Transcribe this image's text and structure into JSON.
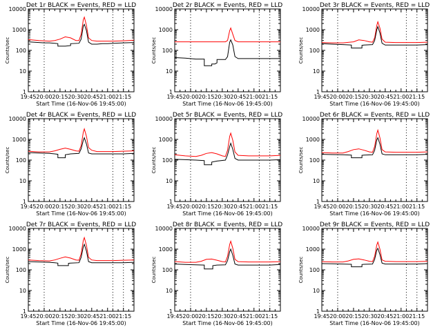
{
  "colors": {
    "events": "#000000",
    "lld": "#ff0000",
    "axis": "#000000",
    "background": "#ffffff"
  },
  "shared": {
    "ylabel": "Counts/sec",
    "xlabel": "Start Time (16-Nov-06 19:45:00)",
    "x_tick_labels": [
      "19:45",
      "20:00",
      "20:15",
      "20:30",
      "20:45",
      "21:00",
      "21:15"
    ],
    "y_tick_labels": [
      "1",
      "10",
      "100",
      "1000",
      "10000"
    ],
    "x_range_minutes": [
      0,
      100
    ],
    "y_range": [
      1,
      10000
    ],
    "y_scale": "log",
    "dotted_verticals_minutes": [
      15,
      80,
      90
    ]
  },
  "chart_data": [
    {
      "type": "line",
      "title": "Det 1r BLACK = Events, RED = LLD",
      "series": [
        {
          "name": "Events",
          "x": [
            0,
            5,
            10,
            15,
            20,
            25,
            28,
            28,
            35,
            40,
            40,
            48,
            50,
            52,
            53,
            55,
            57,
            60,
            65,
            70,
            75,
            80,
            90,
            100
          ],
          "y": [
            260,
            250,
            240,
            230,
            230,
            220,
            210,
            160,
            160,
            170,
            210,
            220,
            350,
            1500,
            1800,
            900,
            250,
            200,
            200,
            210,
            210,
            220,
            230,
            240
          ]
        },
        {
          "name": "LLD",
          "x": [
            0,
            10,
            20,
            25,
            30,
            35,
            40,
            45,
            48,
            50,
            52,
            53,
            55,
            57,
            60,
            65,
            70,
            80,
            90,
            100
          ],
          "y": [
            330,
            300,
            280,
            300,
            350,
            450,
            400,
            300,
            300,
            600,
            3000,
            4000,
            1600,
            400,
            300,
            280,
            280,
            280,
            290,
            310
          ]
        }
      ]
    },
    {
      "type": "line",
      "title": "Det 2r BLACK = Events, RED = LLD",
      "series": [
        {
          "name": "Events",
          "x": [
            0,
            10,
            20,
            25,
            28,
            28,
            35,
            35,
            38,
            40,
            40,
            48,
            50,
            52,
            53,
            55,
            57,
            60,
            70,
            80,
            90,
            100
          ],
          "y": [
            45,
            42,
            38,
            38,
            38,
            18,
            18,
            22,
            22,
            25,
            36,
            36,
            50,
            250,
            320,
            180,
            50,
            40,
            40,
            40,
            40,
            40
          ]
        },
        {
          "name": "LLD",
          "x": [
            0,
            10,
            20,
            30,
            40,
            48,
            50,
            52,
            53,
            55,
            57,
            60,
            70,
            80,
            90,
            100
          ],
          "y": [
            260,
            260,
            260,
            260,
            260,
            260,
            300,
            900,
            1200,
            600,
            300,
            260,
            260,
            260,
            260,
            260
          ]
        }
      ]
    },
    {
      "type": "line",
      "title": "Det 3r BLACK = Events, RED = LLD",
      "series": [
        {
          "name": "Events",
          "x": [
            0,
            10,
            20,
            25,
            28,
            28,
            38,
            38,
            40,
            48,
            50,
            52,
            53,
            55,
            57,
            60,
            70,
            80,
            90,
            100
          ],
          "y": [
            210,
            200,
            190,
            185,
            180,
            130,
            130,
            175,
            180,
            190,
            300,
            1000,
            1400,
            700,
            220,
            180,
            180,
            180,
            180,
            190
          ]
        },
        {
          "name": "LLD",
          "x": [
            0,
            10,
            20,
            30,
            35,
            40,
            45,
            48,
            50,
            52,
            53,
            55,
            57,
            60,
            70,
            80,
            90,
            100
          ],
          "y": [
            240,
            230,
            230,
            260,
            320,
            300,
            260,
            250,
            400,
            1600,
            2400,
            1200,
            350,
            250,
            240,
            240,
            240,
            250
          ]
        }
      ]
    },
    {
      "type": "line",
      "title": "Det 4r BLACK = Events, RED = LLD",
      "series": [
        {
          "name": "Events",
          "x": [
            0,
            10,
            20,
            25,
            28,
            28,
            35,
            35,
            40,
            48,
            50,
            52,
            53,
            55,
            57,
            60,
            70,
            80,
            90,
            100
          ],
          "y": [
            230,
            220,
            210,
            200,
            190,
            130,
            130,
            180,
            200,
            210,
            350,
            900,
            1200,
            600,
            220,
            200,
            200,
            200,
            200,
            210
          ]
        },
        {
          "name": "LLD",
          "x": [
            0,
            10,
            20,
            25,
            30,
            35,
            40,
            45,
            48,
            50,
            52,
            53,
            55,
            57,
            60,
            65,
            70,
            80,
            90,
            100
          ],
          "y": [
            270,
            250,
            250,
            280,
            330,
            380,
            330,
            280,
            270,
            500,
            2200,
            3200,
            1400,
            400,
            300,
            260,
            260,
            260,
            270,
            280
          ]
        }
      ]
    },
    {
      "type": "line",
      "title": "Det 5r BLACK = Events, RED = LLD",
      "series": [
        {
          "name": "Events",
          "x": [
            0,
            10,
            20,
            28,
            28,
            35,
            35,
            40,
            48,
            50,
            52,
            53,
            55,
            57,
            60,
            70,
            80,
            90,
            100
          ],
          "y": [
            110,
            105,
            100,
            95,
            60,
            60,
            80,
            90,
            100,
            180,
            450,
            650,
            330,
            120,
            100,
            100,
            100,
            100,
            105
          ]
        },
        {
          "name": "LLD",
          "x": [
            0,
            10,
            20,
            25,
            30,
            35,
            40,
            45,
            48,
            50,
            52,
            53,
            55,
            57,
            60,
            70,
            80,
            90,
            100
          ],
          "y": [
            180,
            160,
            150,
            170,
            210,
            230,
            200,
            160,
            150,
            300,
            1400,
            2000,
            900,
            250,
            170,
            160,
            160,
            160,
            170
          ]
        }
      ]
    },
    {
      "type": "line",
      "title": "Det 6r BLACK = Events, RED = LLD",
      "series": [
        {
          "name": "Events",
          "x": [
            0,
            10,
            20,
            28,
            28,
            38,
            38,
            40,
            48,
            50,
            52,
            53,
            55,
            57,
            60,
            70,
            80,
            90,
            100
          ],
          "y": [
            190,
            185,
            180,
            175,
            130,
            130,
            170,
            175,
            180,
            300,
            950,
            1200,
            600,
            200,
            180,
            180,
            180,
            180,
            190
          ]
        },
        {
          "name": "LLD",
          "x": [
            0,
            10,
            20,
            25,
            30,
            35,
            40,
            45,
            48,
            50,
            52,
            53,
            55,
            57,
            60,
            70,
            80,
            90,
            100
          ],
          "y": [
            230,
            220,
            220,
            260,
            320,
            350,
            300,
            250,
            240,
            450,
            1900,
            2800,
            1200,
            320,
            250,
            240,
            240,
            240,
            250
          ]
        }
      ]
    },
    {
      "type": "line",
      "title": "Det 7r BLACK = Events, RED = LLD",
      "series": [
        {
          "name": "Events",
          "x": [
            0,
            10,
            20,
            25,
            28,
            28,
            38,
            38,
            40,
            48,
            50,
            52,
            53,
            55,
            57,
            60,
            70,
            80,
            90,
            100
          ],
          "y": [
            250,
            240,
            230,
            220,
            210,
            160,
            160,
            205,
            210,
            220,
            400,
            1300,
            1700,
            800,
            250,
            220,
            220,
            220,
            220,
            230
          ]
        },
        {
          "name": "LLD",
          "x": [
            0,
            10,
            20,
            25,
            30,
            35,
            40,
            45,
            48,
            50,
            52,
            53,
            55,
            57,
            60,
            65,
            70,
            80,
            90,
            100
          ],
          "y": [
            300,
            280,
            270,
            300,
            360,
            420,
            370,
            300,
            290,
            600,
            2600,
            3600,
            1500,
            400,
            300,
            280,
            280,
            280,
            290,
            300
          ]
        }
      ]
    },
    {
      "type": "line",
      "title": "Det 8r BLACK = Events, RED = LLD",
      "series": [
        {
          "name": "Events",
          "x": [
            0,
            10,
            20,
            28,
            28,
            36,
            36,
            40,
            48,
            50,
            52,
            53,
            55,
            57,
            60,
            70,
            80,
            90,
            100
          ],
          "y": [
            190,
            180,
            175,
            170,
            110,
            110,
            160,
            170,
            175,
            280,
            750,
            1000,
            500,
            190,
            170,
            170,
            170,
            170,
            180
          ]
        },
        {
          "name": "LLD",
          "x": [
            0,
            10,
            20,
            25,
            30,
            35,
            40,
            45,
            48,
            50,
            52,
            53,
            55,
            57,
            60,
            70,
            80,
            90,
            100
          ],
          "y": [
            250,
            230,
            230,
            260,
            320,
            330,
            290,
            250,
            240,
            450,
            1700,
            2400,
            1100,
            320,
            250,
            240,
            240,
            240,
            250
          ]
        }
      ]
    },
    {
      "type": "line",
      "title": "Det 9r BLACK = Events, RED = LLD",
      "series": [
        {
          "name": "Events",
          "x": [
            0,
            10,
            20,
            28,
            28,
            38,
            38,
            40,
            48,
            50,
            52,
            53,
            55,
            57,
            60,
            70,
            80,
            90,
            100
          ],
          "y": [
            200,
            195,
            190,
            185,
            140,
            140,
            180,
            185,
            190,
            320,
            900,
            1100,
            550,
            210,
            190,
            190,
            190,
            190,
            200
          ]
        },
        {
          "name": "LLD",
          "x": [
            0,
            10,
            20,
            25,
            30,
            35,
            40,
            45,
            48,
            50,
            52,
            53,
            55,
            57,
            60,
            70,
            80,
            90,
            100
          ],
          "y": [
            250,
            240,
            240,
            270,
            320,
            340,
            300,
            260,
            250,
            450,
            1600,
            2200,
            1000,
            300,
            260,
            250,
            250,
            250,
            260
          ]
        }
      ]
    }
  ]
}
